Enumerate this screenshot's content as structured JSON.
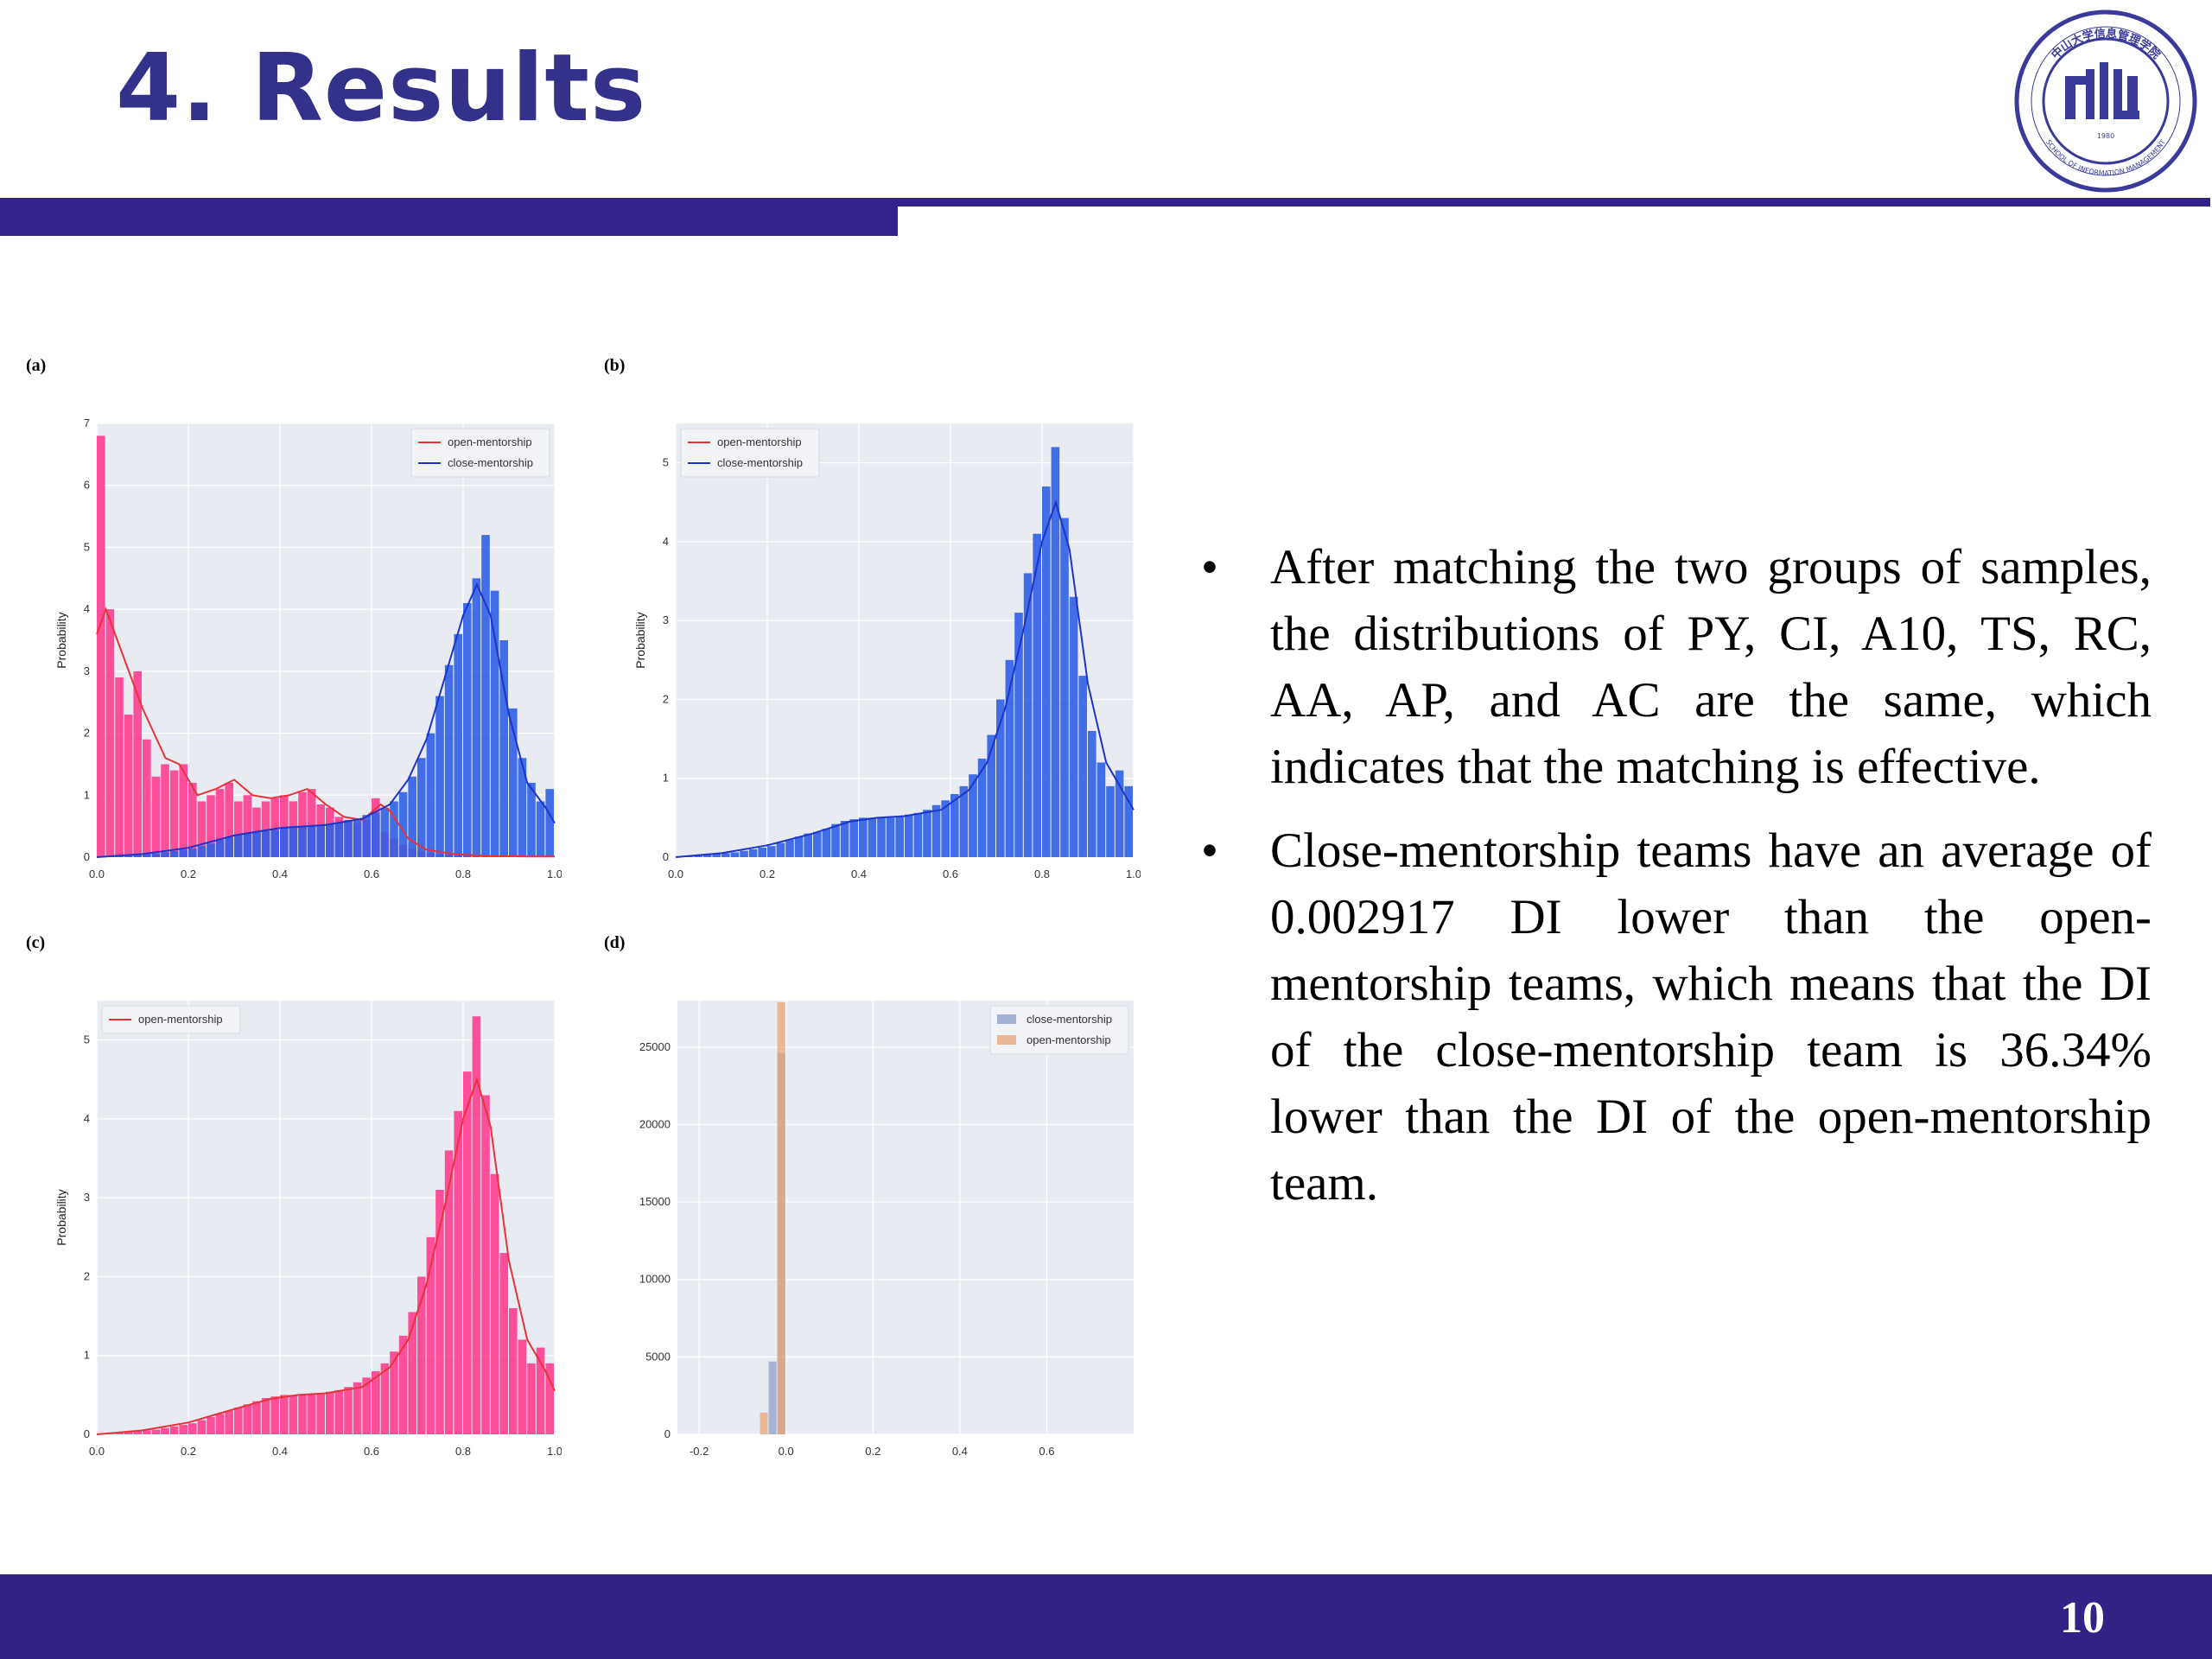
{
  "slide": {
    "title": "4. Results",
    "page_number": "10",
    "logo_text": "中山大学信息管理学院 SCHOOL OF INFORMATION MANAGEMENT 1980",
    "accent_color": "#33218c"
  },
  "bullets": [
    {
      "marker": "•",
      "text": "After matching the two groups of samples, the distributions of PY, CI, A10, TS, RC, AA, AP, and AC are the same, which indicates that the matching is effective."
    },
    {
      "marker": "•",
      "text": "Close-mentorship teams have an average of 0.002917 DI lower than the open-mentorship teams, which means that the DI of the close-mentorship team is 36.34% lower than the DI of the open-mentorship team."
    }
  ],
  "chart_data": [
    {
      "panel": "(a)",
      "type": "bar",
      "ylabel": "Probability",
      "xlim": [
        0,
        1
      ],
      "ylim": [
        0,
        7
      ],
      "xticks": [
        "0.0",
        "0.2",
        "0.4",
        "0.6",
        "0.8",
        "1.0"
      ],
      "yticks": [
        "0",
        "1",
        "2",
        "3",
        "4",
        "5",
        "6",
        "7"
      ],
      "grid": true,
      "legend": [
        "open-mentorship",
        "close-mentorship"
      ],
      "legend_position": "top-right",
      "colors": {
        "open-mentorship": "#ff3d8f",
        "close-mentorship": "#2f5fe6",
        "open-line": "#e8323a",
        "close-line": "#1d34c9"
      },
      "series": [
        {
          "name": "open-mentorship",
          "bins": [
            0,
            0.02,
            0.04,
            0.06,
            0.08,
            0.1,
            0.12,
            0.14,
            0.16,
            0.18,
            0.2,
            0.22,
            0.24,
            0.26,
            0.28,
            0.3,
            0.32,
            0.34,
            0.36,
            0.38,
            0.4,
            0.42,
            0.44,
            0.46,
            0.48,
            0.5,
            0.52,
            0.54,
            0.56,
            0.58,
            0.6,
            0.62,
            0.64,
            0.66,
            0.68,
            0.7,
            0.72,
            0.74,
            0.76,
            0.78,
            0.8,
            0.82,
            0.84,
            0.86,
            0.88,
            0.9,
            0.92,
            0.94,
            0.96,
            0.98
          ],
          "values": [
            6.8,
            4.0,
            2.9,
            2.3,
            3.0,
            1.9,
            1.3,
            1.5,
            1.4,
            1.5,
            1.2,
            0.9,
            1.0,
            1.1,
            1.2,
            0.9,
            1.0,
            0.8,
            0.9,
            0.95,
            1.0,
            0.9,
            1.05,
            1.1,
            0.85,
            0.8,
            0.65,
            0.6,
            0.55,
            0.6,
            0.95,
            0.4,
            0.3,
            0.2,
            0.14,
            0.1,
            0.07,
            0.05,
            0.04,
            0.03,
            0.02,
            0.02,
            0.01,
            0.01,
            0.01,
            0.01,
            0.01,
            0.01,
            0.01,
            0.01
          ]
        },
        {
          "name": "close-mentorship",
          "bins": [
            0,
            0.02,
            0.04,
            0.06,
            0.08,
            0.1,
            0.12,
            0.14,
            0.16,
            0.18,
            0.2,
            0.22,
            0.24,
            0.26,
            0.28,
            0.3,
            0.32,
            0.34,
            0.36,
            0.38,
            0.4,
            0.42,
            0.44,
            0.46,
            0.48,
            0.5,
            0.52,
            0.54,
            0.56,
            0.58,
            0.6,
            0.62,
            0.64,
            0.66,
            0.68,
            0.7,
            0.72,
            0.74,
            0.76,
            0.78,
            0.8,
            0.82,
            0.84,
            0.86,
            0.88,
            0.9,
            0.92,
            0.94,
            0.96,
            0.98
          ],
          "values": [
            0.01,
            0.01,
            0.02,
            0.03,
            0.04,
            0.05,
            0.06,
            0.08,
            0.1,
            0.12,
            0.14,
            0.18,
            0.22,
            0.28,
            0.32,
            0.36,
            0.38,
            0.4,
            0.42,
            0.44,
            0.48,
            0.5,
            0.5,
            0.5,
            0.52,
            0.54,
            0.56,
            0.58,
            0.62,
            0.68,
            0.72,
            0.8,
            0.9,
            1.05,
            1.3,
            1.6,
            2.0,
            2.6,
            3.1,
            3.6,
            4.1,
            4.5,
            5.2,
            4.3,
            3.5,
            2.4,
            1.6,
            1.2,
            0.9,
            1.1
          ]
        }
      ],
      "kde": {
        "open-mentorship": [
          [
            0,
            3.6
          ],
          [
            0.02,
            4.0
          ],
          [
            0.05,
            3.4
          ],
          [
            0.1,
            2.4
          ],
          [
            0.15,
            1.6
          ],
          [
            0.18,
            1.5
          ],
          [
            0.22,
            1.0
          ],
          [
            0.26,
            1.1
          ],
          [
            0.3,
            1.25
          ],
          [
            0.34,
            1.0
          ],
          [
            0.38,
            0.95
          ],
          [
            0.42,
            1.0
          ],
          [
            0.46,
            1.1
          ],
          [
            0.5,
            0.85
          ],
          [
            0.54,
            0.65
          ],
          [
            0.58,
            0.6
          ],
          [
            0.62,
            0.85
          ],
          [
            0.64,
            0.75
          ],
          [
            0.68,
            0.3
          ],
          [
            0.72,
            0.12
          ],
          [
            0.78,
            0.05
          ],
          [
            0.85,
            0.02
          ],
          [
            0.95,
            0.01
          ],
          [
            1.0,
            0.01
          ]
        ],
        "close-mentorship": [
          [
            0,
            0.0
          ],
          [
            0.1,
            0.05
          ],
          [
            0.2,
            0.15
          ],
          [
            0.3,
            0.35
          ],
          [
            0.4,
            0.47
          ],
          [
            0.5,
            0.52
          ],
          [
            0.58,
            0.62
          ],
          [
            0.64,
            0.85
          ],
          [
            0.68,
            1.25
          ],
          [
            0.72,
            1.9
          ],
          [
            0.76,
            2.9
          ],
          [
            0.8,
            3.9
          ],
          [
            0.83,
            4.4
          ],
          [
            0.86,
            3.9
          ],
          [
            0.9,
            2.3
          ],
          [
            0.94,
            1.2
          ],
          [
            0.98,
            0.8
          ],
          [
            1.0,
            0.55
          ]
        ]
      }
    },
    {
      "panel": "(b)",
      "type": "bar",
      "ylabel": "Probability",
      "xlim": [
        0,
        1
      ],
      "ylim": [
        0,
        5.5
      ],
      "xticks": [
        "0.0",
        "0.2",
        "0.4",
        "0.6",
        "0.8",
        "1.0"
      ],
      "yticks": [
        "0",
        "1",
        "2",
        "3",
        "4",
        "5"
      ],
      "grid": true,
      "legend": [
        "open-mentorship",
        "close-mentorship"
      ],
      "legend_position": "top-left",
      "colors": {
        "close-mentorship": "#2f5fe6",
        "open-line": "#e8323a",
        "close-line": "#1d34c9"
      },
      "series": [
        {
          "name": "close-mentorship",
          "bins": [
            0,
            0.02,
            0.04,
            0.06,
            0.08,
            0.1,
            0.12,
            0.14,
            0.16,
            0.18,
            0.2,
            0.22,
            0.24,
            0.26,
            0.28,
            0.3,
            0.32,
            0.34,
            0.36,
            0.38,
            0.4,
            0.42,
            0.44,
            0.46,
            0.48,
            0.5,
            0.52,
            0.54,
            0.56,
            0.58,
            0.6,
            0.62,
            0.64,
            0.66,
            0.68,
            0.7,
            0.72,
            0.74,
            0.76,
            0.78,
            0.8,
            0.82,
            0.84,
            0.86,
            0.88,
            0.9,
            0.92,
            0.94,
            0.96,
            0.98
          ],
          "values": [
            0.01,
            0.01,
            0.02,
            0.03,
            0.04,
            0.05,
            0.06,
            0.08,
            0.1,
            0.12,
            0.14,
            0.18,
            0.22,
            0.26,
            0.3,
            0.32,
            0.36,
            0.42,
            0.46,
            0.48,
            0.5,
            0.5,
            0.5,
            0.5,
            0.52,
            0.54,
            0.56,
            0.6,
            0.66,
            0.72,
            0.8,
            0.9,
            1.05,
            1.25,
            1.55,
            2.0,
            2.5,
            3.1,
            3.6,
            4.1,
            4.7,
            5.2,
            4.3,
            3.3,
            2.3,
            1.6,
            1.2,
            0.9,
            1.1,
            0.9
          ]
        }
      ],
      "kde": {
        "close-mentorship": [
          [
            0,
            0.0
          ],
          [
            0.1,
            0.05
          ],
          [
            0.2,
            0.15
          ],
          [
            0.3,
            0.3
          ],
          [
            0.38,
            0.45
          ],
          [
            0.44,
            0.5
          ],
          [
            0.5,
            0.52
          ],
          [
            0.58,
            0.6
          ],
          [
            0.64,
            0.85
          ],
          [
            0.68,
            1.2
          ],
          [
            0.72,
            1.9
          ],
          [
            0.76,
            2.9
          ],
          [
            0.8,
            4.0
          ],
          [
            0.83,
            4.5
          ],
          [
            0.86,
            3.9
          ],
          [
            0.9,
            2.2
          ],
          [
            0.94,
            1.2
          ],
          [
            0.98,
            0.8
          ],
          [
            1.0,
            0.6
          ]
        ]
      }
    },
    {
      "panel": "(c)",
      "type": "bar",
      "ylabel": "Probability",
      "xlim": [
        0,
        1
      ],
      "ylim": [
        0,
        5.5
      ],
      "xticks": [
        "0.0",
        "0.2",
        "0.4",
        "0.6",
        "0.8",
        "1.0"
      ],
      "yticks": [
        "0",
        "1",
        "2",
        "3",
        "4",
        "5"
      ],
      "grid": true,
      "legend": [
        "open-mentorship"
      ],
      "legend_position": "top-left",
      "colors": {
        "open-mentorship": "#ff3d8f",
        "open-line": "#e8323a"
      },
      "series": [
        {
          "name": "open-mentorship",
          "bins": [
            0,
            0.02,
            0.04,
            0.06,
            0.08,
            0.1,
            0.12,
            0.14,
            0.16,
            0.18,
            0.2,
            0.22,
            0.24,
            0.26,
            0.28,
            0.3,
            0.32,
            0.34,
            0.36,
            0.38,
            0.4,
            0.42,
            0.44,
            0.46,
            0.48,
            0.5,
            0.52,
            0.54,
            0.56,
            0.58,
            0.6,
            0.62,
            0.64,
            0.66,
            0.68,
            0.7,
            0.72,
            0.74,
            0.76,
            0.78,
            0.8,
            0.82,
            0.84,
            0.86,
            0.88,
            0.9,
            0.92,
            0.94,
            0.96,
            0.98
          ],
          "values": [
            0.01,
            0.01,
            0.02,
            0.03,
            0.04,
            0.05,
            0.06,
            0.08,
            0.1,
            0.12,
            0.14,
            0.18,
            0.22,
            0.26,
            0.3,
            0.34,
            0.38,
            0.42,
            0.46,
            0.48,
            0.5,
            0.5,
            0.5,
            0.5,
            0.52,
            0.54,
            0.56,
            0.6,
            0.66,
            0.72,
            0.8,
            0.9,
            1.05,
            1.25,
            1.55,
            2.0,
            2.5,
            3.1,
            3.6,
            4.1,
            4.6,
            5.3,
            4.3,
            3.3,
            2.3,
            1.6,
            1.2,
            0.9,
            1.1,
            0.9
          ]
        }
      ],
      "kde": {
        "open-mentorship": [
          [
            0,
            0.0
          ],
          [
            0.1,
            0.05
          ],
          [
            0.2,
            0.15
          ],
          [
            0.3,
            0.32
          ],
          [
            0.38,
            0.45
          ],
          [
            0.44,
            0.5
          ],
          [
            0.5,
            0.52
          ],
          [
            0.58,
            0.6
          ],
          [
            0.64,
            0.85
          ],
          [
            0.68,
            1.2
          ],
          [
            0.72,
            1.9
          ],
          [
            0.76,
            2.9
          ],
          [
            0.8,
            4.0
          ],
          [
            0.83,
            4.5
          ],
          [
            0.86,
            3.9
          ],
          [
            0.9,
            2.2
          ],
          [
            0.94,
            1.2
          ],
          [
            0.98,
            0.8
          ],
          [
            1.0,
            0.55
          ]
        ]
      }
    },
    {
      "panel": "(d)",
      "type": "bar",
      "xlim": [
        -0.25,
        0.8
      ],
      "ylim": [
        0,
        28000
      ],
      "xticks": [
        "-0.2",
        "0.0",
        "0.2",
        "0.4",
        "0.6"
      ],
      "yticks": [
        "0",
        "5000",
        "10000",
        "15000",
        "20000",
        "25000"
      ],
      "grid": true,
      "legend": [
        "close-mentorship",
        "open-mentorship"
      ],
      "legend_position": "top-right",
      "colors": {
        "close-mentorship": "#8da0cb",
        "open-mentorship": "#e8a67a"
      },
      "series": [
        {
          "name": "close-mentorship",
          "bins": [
            -0.04,
            -0.02,
            0.0
          ],
          "values": [
            4700,
            24600,
            0
          ]
        },
        {
          "name": "open-mentorship",
          "bins": [
            -0.06,
            -0.04,
            -0.02,
            0.0
          ],
          "values": [
            1400,
            0,
            27900,
            0
          ]
        }
      ]
    }
  ]
}
